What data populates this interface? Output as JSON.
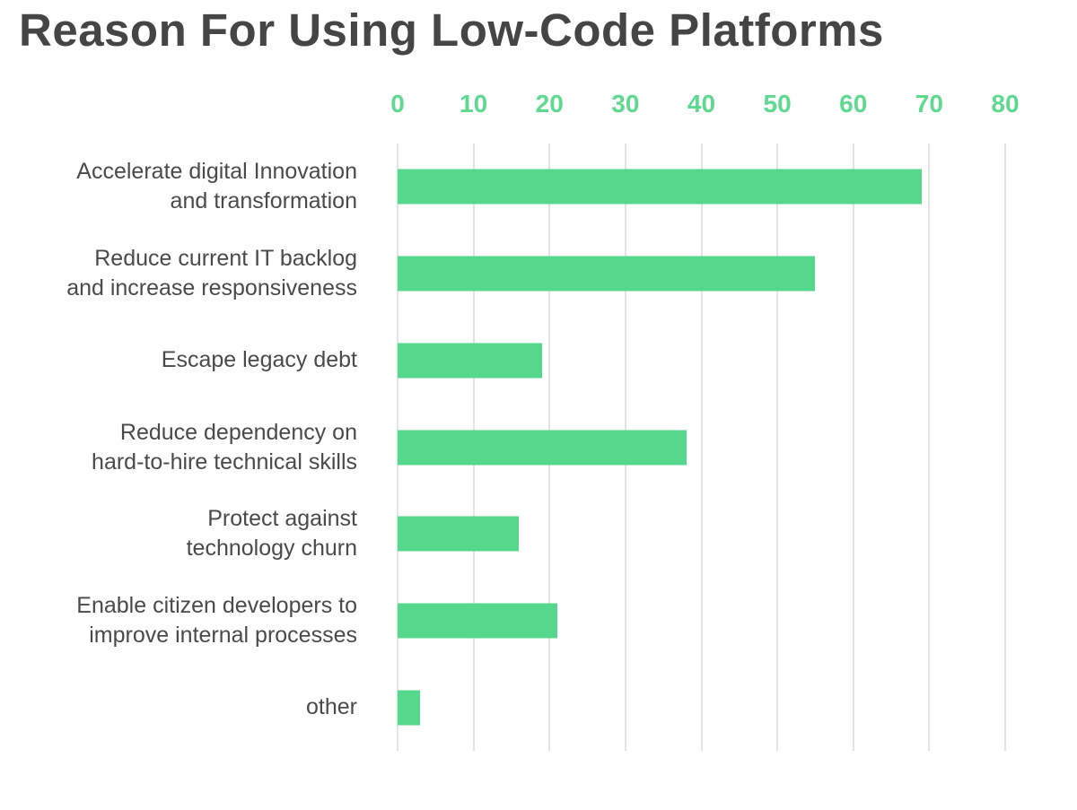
{
  "title": "Reason For Using Low-Code Platforms",
  "colors": {
    "bar": "#55d78c",
    "axis_tick": "#5fd890",
    "title_text": "#454545",
    "category_text": "#4a4a4a",
    "gridline": "#e3e3e3",
    "background": "#ffffff"
  },
  "chart_data": {
    "type": "bar",
    "orientation": "horizontal",
    "title": "Reason For Using Low-Code Platforms",
    "categories": [
      "Accelerate digital Innovation and transformation",
      "Reduce current IT backlog and increase responsiveness",
      "Escape legacy debt",
      "Reduce dependency on hard-to-hire technical skills",
      "Protect against technology churn",
      "Enable citizen developers to improve internal processes",
      "other"
    ],
    "category_lines": [
      [
        "Accelerate digital Innovation",
        "and transformation"
      ],
      [
        "Reduce current IT backlog",
        "and increase responsiveness"
      ],
      [
        "Escape legacy debt"
      ],
      [
        "Reduce dependency on",
        "hard-to-hire technical skills"
      ],
      [
        "Protect against",
        "technology churn"
      ],
      [
        "Enable citizen developers to",
        "improve internal processes"
      ],
      [
        "other"
      ]
    ],
    "values": [
      69,
      55,
      19,
      38,
      16,
      21,
      3
    ],
    "xlim": [
      0,
      80
    ],
    "xticks": [
      0,
      10,
      20,
      30,
      40,
      50,
      60,
      70,
      80
    ],
    "grid": true,
    "legend": false,
    "axis_position": "top"
  }
}
